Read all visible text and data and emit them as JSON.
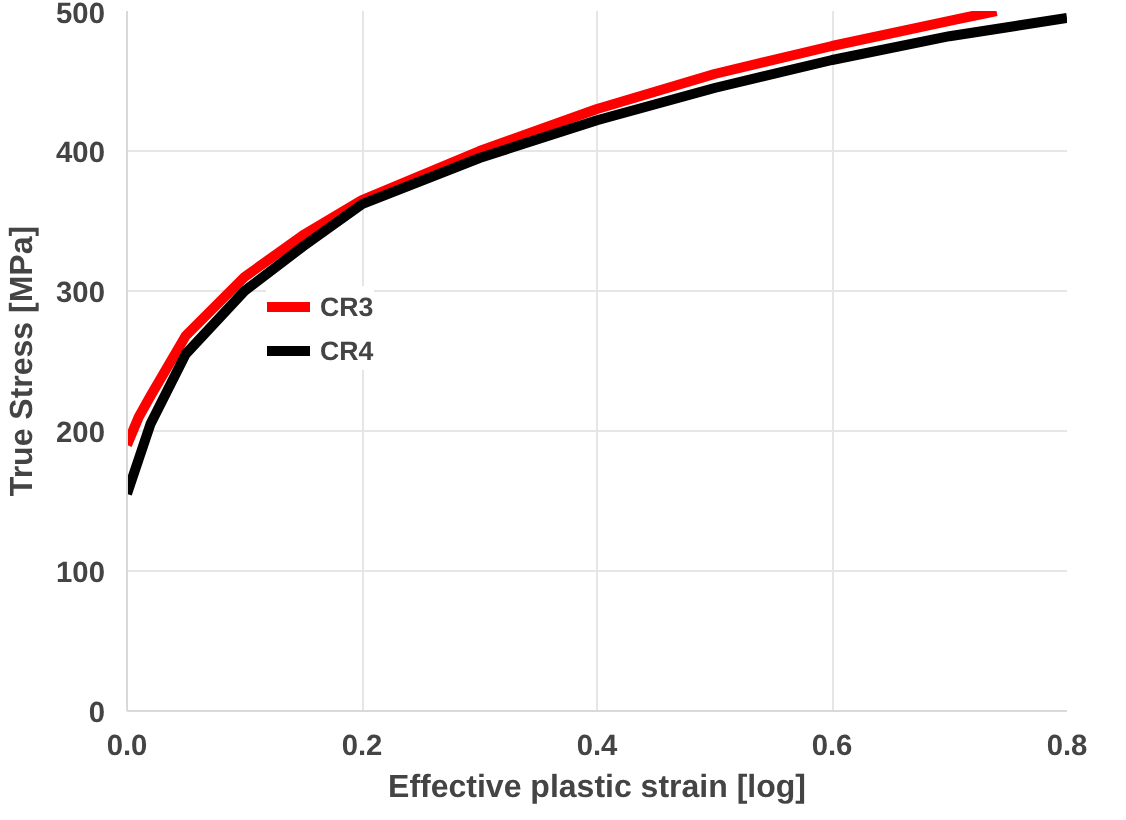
{
  "chart_data": {
    "type": "line",
    "xlabel": "Effective plastic strain [log]",
    "ylabel": "True Stress [MPa]",
    "xlim": [
      0,
      0.8
    ],
    "ylim": [
      0,
      500
    ],
    "xticks": [
      {
        "value": 0,
        "label": "0.0"
      },
      0.2,
      0.4,
      0.6,
      0.8
    ],
    "yticks": [
      0,
      100,
      200,
      300,
      400,
      500
    ],
    "grid": true,
    "legend": "left",
    "marker": "none",
    "line_style": "solid",
    "series": [
      {
        "name": "CR3",
        "color": "#ff0000",
        "x": [
          0,
          0.01,
          0.02,
          0.05,
          0.1,
          0.15,
          0.2,
          0.3,
          0.4,
          0.5,
          0.6,
          0.7,
          0.74
        ],
        "values": [
          190,
          210,
          225,
          268,
          310,
          340,
          365,
          400,
          430,
          455,
          475,
          493,
          500
        ]
      },
      {
        "name": "CR4",
        "color": "#000000",
        "x": [
          0,
          0.01,
          0.02,
          0.05,
          0.1,
          0.15,
          0.2,
          0.3,
          0.4,
          0.5,
          0.6,
          0.7,
          0.8
        ],
        "values": [
          155,
          180,
          205,
          255,
          300,
          332,
          362,
          395,
          422,
          445,
          465,
          482,
          495
        ]
      }
    ]
  }
}
